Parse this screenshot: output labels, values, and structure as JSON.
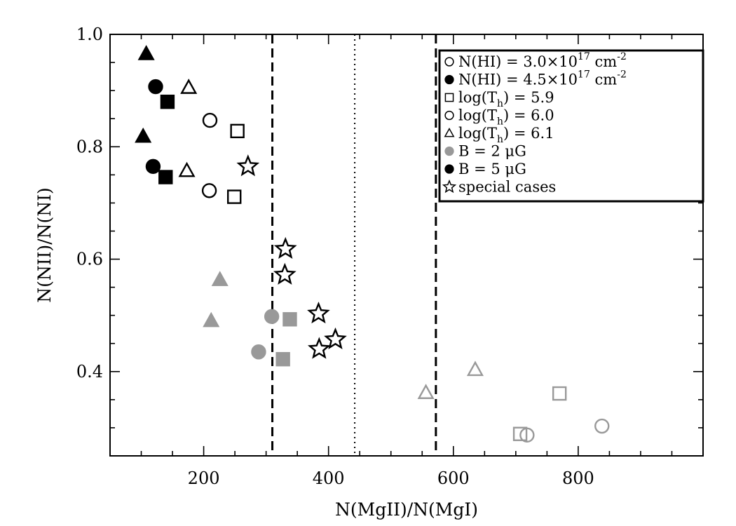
{
  "chart_data": {
    "type": "scatter",
    "xlabel": "N(MgII)/N(MgI)",
    "ylabel": "N(NII)/N(NI)",
    "xlim": [
      50,
      1000
    ],
    "ylim": [
      0.25,
      1.0
    ],
    "x_ticks": [
      200,
      400,
      600,
      800
    ],
    "x_tick_labels": [
      "200",
      "400",
      "600",
      "800"
    ],
    "y_ticks": [
      0.4,
      0.6,
      0.8,
      1.0
    ],
    "y_tick_labels": [
      "0.4",
      "0.6",
      "0.8",
      "1.0"
    ],
    "x_minor_step": 50,
    "y_minor_step": 0.05,
    "vertical_lines": [
      {
        "x": 310,
        "style": "dashed"
      },
      {
        "x": 442,
        "style": "dotted"
      },
      {
        "x": 572,
        "style": "dashed"
      }
    ],
    "colors": {
      "B2": "#999999",
      "B5": "#000000",
      "special": "#000000"
    },
    "legend": {
      "placement": "top-right",
      "entries": [
        {
          "marker": "circle",
          "fill": "open",
          "color": "#000000",
          "main": "N(HI)  =  3.0×10",
          "sup": "17",
          "tail": " cm",
          "tail_sup": "-2"
        },
        {
          "marker": "circle",
          "fill": "filled",
          "color": "#000000",
          "main": "N(HI)  =  4.5×10",
          "sup": "17",
          "tail": " cm",
          "tail_sup": "-2"
        },
        {
          "marker": "square",
          "fill": "open",
          "color": "#000000",
          "main": "log(T",
          "sub": "h",
          "tail": ")  =  5.9"
        },
        {
          "marker": "circle",
          "fill": "open",
          "color": "#000000",
          "main": "log(T",
          "sub": "h",
          "tail": ")  =  6.0"
        },
        {
          "marker": "triangle",
          "fill": "open",
          "color": "#000000",
          "main": "log(T",
          "sub": "h",
          "tail": ")  =  6.1"
        },
        {
          "marker": "circle",
          "fill": "filled",
          "color": "#999999",
          "main": "B  =  2  μG"
        },
        {
          "marker": "circle",
          "fill": "filled",
          "color": "#000000",
          "main": "B  =  5  μG"
        },
        {
          "marker": "star",
          "fill": "open",
          "color": "#000000",
          "main": "special cases"
        }
      ]
    },
    "points": [
      {
        "x": 108,
        "y": 0.965,
        "marker": "triangle",
        "fill": "filled",
        "color": "#000000"
      },
      {
        "x": 123,
        "y": 0.907,
        "marker": "circle",
        "fill": "filled",
        "color": "#000000"
      },
      {
        "x": 142,
        "y": 0.88,
        "marker": "square",
        "fill": "filled",
        "color": "#000000"
      },
      {
        "x": 176,
        "y": 0.905,
        "marker": "triangle",
        "fill": "open",
        "color": "#000000"
      },
      {
        "x": 210,
        "y": 0.847,
        "marker": "circle",
        "fill": "open",
        "color": "#000000"
      },
      {
        "x": 254,
        "y": 0.828,
        "marker": "square",
        "fill": "open",
        "color": "#000000"
      },
      {
        "x": 103,
        "y": 0.818,
        "marker": "triangle",
        "fill": "filled",
        "color": "#000000"
      },
      {
        "x": 119,
        "y": 0.765,
        "marker": "circle",
        "fill": "filled",
        "color": "#000000"
      },
      {
        "x": 139,
        "y": 0.746,
        "marker": "square",
        "fill": "filled",
        "color": "#000000"
      },
      {
        "x": 173,
        "y": 0.757,
        "marker": "triangle",
        "fill": "open",
        "color": "#000000"
      },
      {
        "x": 209,
        "y": 0.722,
        "marker": "circle",
        "fill": "open",
        "color": "#000000"
      },
      {
        "x": 249,
        "y": 0.711,
        "marker": "square",
        "fill": "open",
        "color": "#000000"
      },
      {
        "x": 271,
        "y": 0.765,
        "marker": "star",
        "fill": "open",
        "color": "#000000"
      },
      {
        "x": 226,
        "y": 0.563,
        "marker": "triangle",
        "fill": "filled",
        "color": "#999999"
      },
      {
        "x": 212,
        "y": 0.49,
        "marker": "triangle",
        "fill": "filled",
        "color": "#999999"
      },
      {
        "x": 309,
        "y": 0.498,
        "marker": "circle",
        "fill": "filled",
        "color": "#999999"
      },
      {
        "x": 338,
        "y": 0.493,
        "marker": "square",
        "fill": "filled",
        "color": "#999999"
      },
      {
        "x": 288,
        "y": 0.435,
        "marker": "circle",
        "fill": "filled",
        "color": "#999999"
      },
      {
        "x": 327,
        "y": 0.422,
        "marker": "square",
        "fill": "filled",
        "color": "#999999"
      },
      {
        "x": 331,
        "y": 0.618,
        "marker": "star",
        "fill": "open",
        "color": "#000000"
      },
      {
        "x": 330,
        "y": 0.572,
        "marker": "star",
        "fill": "open",
        "color": "#000000"
      },
      {
        "x": 384,
        "y": 0.503,
        "marker": "star",
        "fill": "open",
        "color": "#000000"
      },
      {
        "x": 385,
        "y": 0.44,
        "marker": "star",
        "fill": "open",
        "color": "#000000"
      },
      {
        "x": 411,
        "y": 0.457,
        "marker": "star",
        "fill": "open",
        "color": "#000000"
      },
      {
        "x": 556,
        "y": 0.362,
        "marker": "triangle",
        "fill": "open",
        "color": "#999999"
      },
      {
        "x": 635,
        "y": 0.403,
        "marker": "triangle",
        "fill": "open",
        "color": "#999999"
      },
      {
        "x": 770,
        "y": 0.361,
        "marker": "square",
        "fill": "open",
        "color": "#999999"
      },
      {
        "x": 707,
        "y": 0.289,
        "marker": "square",
        "fill": "open",
        "color": "#999999"
      },
      {
        "x": 718,
        "y": 0.287,
        "marker": "circle",
        "fill": "open",
        "color": "#999999"
      },
      {
        "x": 838,
        "y": 0.303,
        "marker": "circle",
        "fill": "open",
        "color": "#999999"
      }
    ]
  }
}
